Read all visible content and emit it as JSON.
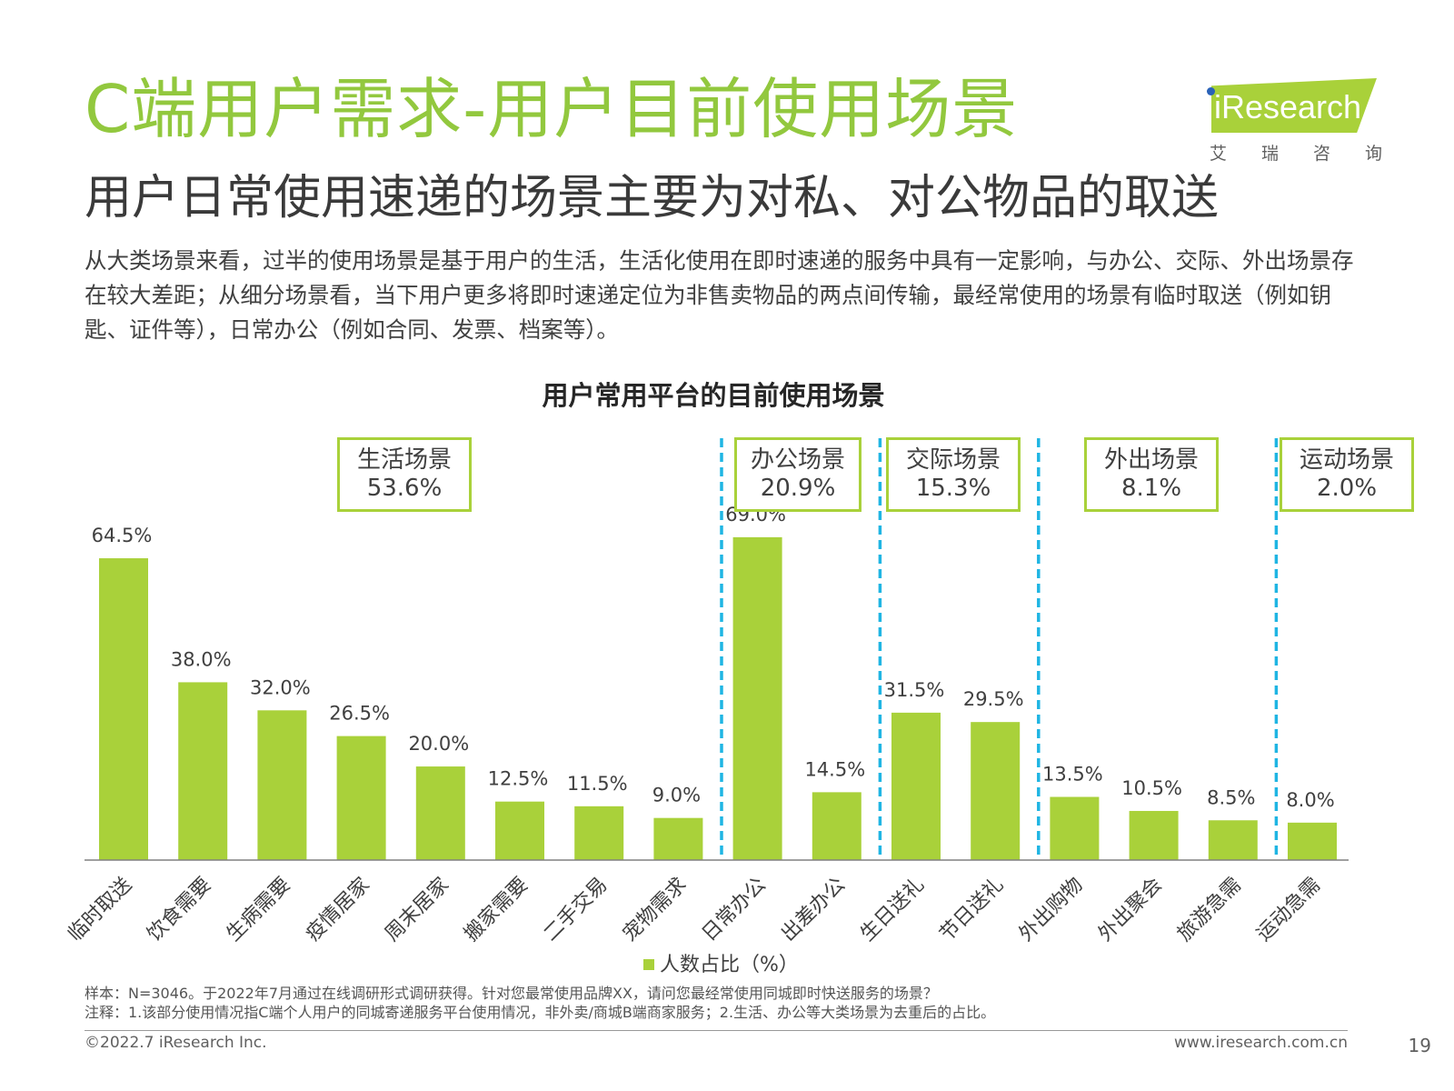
{
  "header": {
    "title": "C端用户需求-用户目前使用场景",
    "subtitle": "用户日常使用速递的场景主要为对私、对公物品的取送",
    "summary": "从大类场景来看，过半的使用场景是基于用户的生活，生活化使用在即时速递的服务中具有一定影响，与办公、交际、外出场景存在较大差距；从细分场景看，当下用户更多将即时速递定位为非售卖物品的两点间传输，最经常使用的场景有临时取送（例如钥匙、证件等），日常办公（例如合同、发票、档案等）。"
  },
  "logo": {
    "text": "iResearch",
    "cn": [
      "艾",
      "瑞",
      "咨",
      "询"
    ]
  },
  "chart_data": {
    "type": "bar",
    "title": "用户常用平台的目前使用场景",
    "categories": [
      "临时取送",
      "饮食需要",
      "生病需要",
      "疫情居家",
      "周末居家",
      "搬家需要",
      "二手交易",
      "宠物需求",
      "日常办公",
      "出差办公",
      "生日送礼",
      "节日送礼",
      "外出购物",
      "外出聚会",
      "旅游急需",
      "运动急需"
    ],
    "series": [
      {
        "name": "人数占比（%）",
        "values": [
          64.5,
          38.0,
          32.0,
          26.5,
          20.0,
          12.5,
          11.5,
          9.0,
          69.0,
          14.5,
          31.5,
          29.5,
          13.5,
          10.5,
          8.5,
          8.0
        ]
      }
    ],
    "value_labels": [
      "64.5%",
      "38.0%",
      "32.0%",
      "26.5%",
      "20.0%",
      "12.5%",
      "11.5%",
      "9.0%",
      "69.0%",
      "14.5%",
      "31.5%",
      "29.5%",
      "13.5%",
      "10.5%",
      "8.5%",
      "8.0%"
    ],
    "ylim": [
      0,
      75
    ],
    "groups": [
      {
        "name": "生活场景",
        "value": "53.6%",
        "start": 0,
        "end": 7
      },
      {
        "name": "办公场景",
        "value": "20.9%",
        "start": 8,
        "end": 9
      },
      {
        "name": "交际场景",
        "value": "15.3%",
        "start": 10,
        "end": 11
      },
      {
        "name": "外出场景",
        "value": "8.1%",
        "start": 12,
        "end": 14
      },
      {
        "name": "运动场景",
        "value": "2.0%",
        "start": 15,
        "end": 15
      }
    ],
    "legend": {
      "label": "人数占比（%）",
      "position": "bottom"
    },
    "colors": {
      "bar": "#a9d13a",
      "divider": "#1fb5e3",
      "axis": "#808080"
    },
    "grid": false
  },
  "notes": {
    "sample": "样本：N=3046。于2022年7月通过在线调研形式调研获得。针对您最常使用品牌XX，请问您最经常使用同城即时快送服务的场景？",
    "remark": "注释：1.该部分使用情况指C端个人用户的同城寄递服务平台使用情况，非外卖/商城B端商家服务；2.生活、办公等大类场景为去重后的占比。"
  },
  "footer": {
    "copyright": "©2022.7 iResearch Inc.",
    "website": "www.iresearch.com.cn",
    "page": "19"
  }
}
